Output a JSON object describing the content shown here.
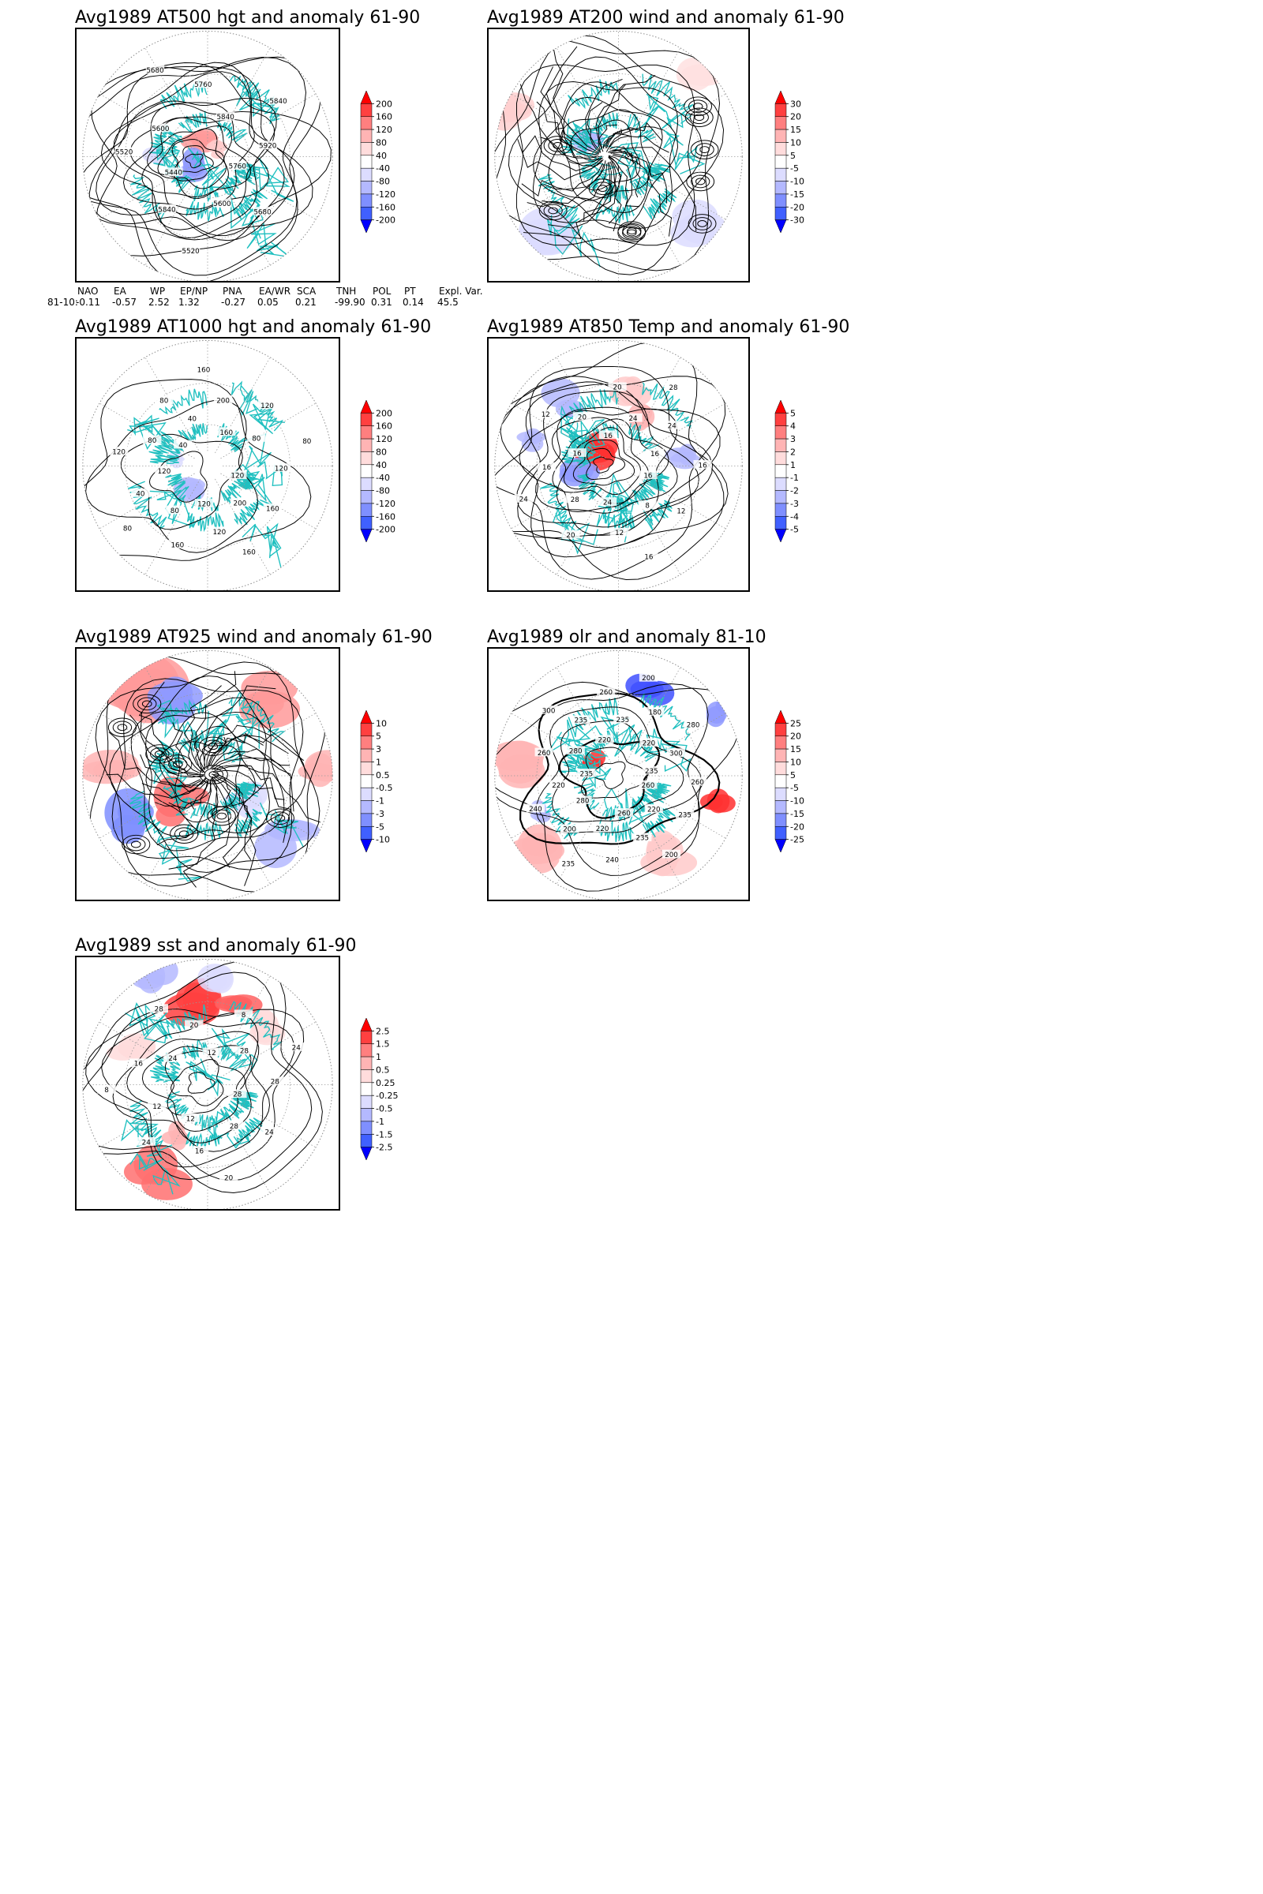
{
  "colors": {
    "coast": "#20c0c0",
    "contour": "#000000",
    "grid": "#9a9a9a",
    "scale": [
      "#0000ff",
      "#4060ff",
      "#7f8fff",
      "#b4b9ff",
      "#dcdcff",
      "#ffffff",
      "#ffdcdc",
      "#ffb4b4",
      "#ff7f7f",
      "#ff4040",
      "#ff0000"
    ]
  },
  "panels": [
    {
      "id": "at500",
      "title": "Avg1989 AT500 hgt and anomaly 61-90",
      "colorbar": [
        "200",
        "160",
        "120",
        "80",
        "40",
        "-40",
        "-80",
        "-120",
        "-160",
        "-200"
      ],
      "contour_labels": [
        "5760",
        "5680",
        "5600",
        "5520",
        "5840",
        "5440",
        "5520",
        "5600",
        "5680",
        "5760",
        "5840",
        "5840",
        "5920"
      ]
    },
    {
      "id": "at200",
      "title": "Avg1989 AT200 wind and anomaly 61-90",
      "colorbar": [
        "30",
        "20",
        "15",
        "10",
        "5",
        "-5",
        "-10",
        "-15",
        "-20",
        "-30"
      ],
      "contour_labels": []
    },
    {
      "id": "at1000",
      "title": "Avg1989 AT1000 hgt and anomaly 61-90",
      "colorbar": [
        "200",
        "160",
        "120",
        "80",
        "40",
        "-40",
        "-80",
        "-120",
        "-160",
        "-200"
      ],
      "contour_labels": [
        "120",
        "160",
        "200",
        "160",
        "120",
        "120",
        "160",
        "80",
        "80",
        "40",
        "120",
        "120",
        "80",
        "40",
        "80",
        "40",
        "160",
        "200",
        "160",
        "120",
        "80",
        "80",
        "120"
      ]
    },
    {
      "id": "at850",
      "title": "Avg1989 AT850 Temp and anomaly 61-90",
      "colorbar": [
        "5",
        "4",
        "3",
        "2",
        "1",
        "-1",
        "-2",
        "-3",
        "-4",
        "-5"
      ],
      "contour_labels": [
        "16",
        "12",
        "8",
        "16",
        "12",
        "24",
        "20",
        "28",
        "24",
        "16",
        "16",
        "12",
        "20",
        "16",
        "20",
        "24",
        "28",
        "24",
        "16",
        "16"
      ]
    },
    {
      "id": "at925",
      "title": "Avg1989 AT925 wind and anomaly 61-90",
      "colorbar": [
        "10",
        "5",
        "3",
        "1",
        "0.5",
        "-0.5",
        "-1",
        "-3",
        "-5",
        "-10"
      ],
      "contour_labels": []
    },
    {
      "id": "olr",
      "title": "Avg1989 olr and anomaly 81-10",
      "colorbar": [
        "25",
        "20",
        "15",
        "10",
        "5",
        "-5",
        "-10",
        "-15",
        "-20",
        "-25"
      ],
      "contour_labels": [
        "260",
        "235",
        "220",
        "200",
        "235",
        "260",
        "240",
        "220",
        "235",
        "200",
        "280",
        "240",
        "220",
        "235",
        "260",
        "280",
        "300",
        "235",
        "220",
        "260",
        "235",
        "200",
        "180",
        "220",
        "280",
        "300",
        "235",
        "260"
      ]
    },
    {
      "id": "sst",
      "title": "Avg1989 sst and anomaly 61-90",
      "colorbar": [
        "2.5",
        "1.5",
        "1",
        "0.5",
        "0.25",
        "-0.25",
        "-0.5",
        "-1",
        "-1.5",
        "-2.5"
      ],
      "contour_labels": [
        "28",
        "24",
        "28",
        "20",
        "16",
        "12",
        "24",
        "12",
        "8",
        "16",
        "24",
        "28",
        "20",
        "12",
        "8",
        "28",
        "24",
        "28"
      ]
    }
  ],
  "teleconnection": {
    "headers": [
      "NAO",
      "EA",
      "WP",
      "EP/NP",
      "PNA",
      "EA/WR",
      "SCA",
      "TNH",
      "POL",
      "PT",
      "Expl. Var."
    ],
    "row_label": "81-10:",
    "values": [
      "-0.11",
      "-0.57",
      "2.52",
      "1.32",
      "-0.27",
      "0.05",
      "0.21",
      "-99.90",
      "0.31",
      "0.14",
      "45.5"
    ]
  }
}
